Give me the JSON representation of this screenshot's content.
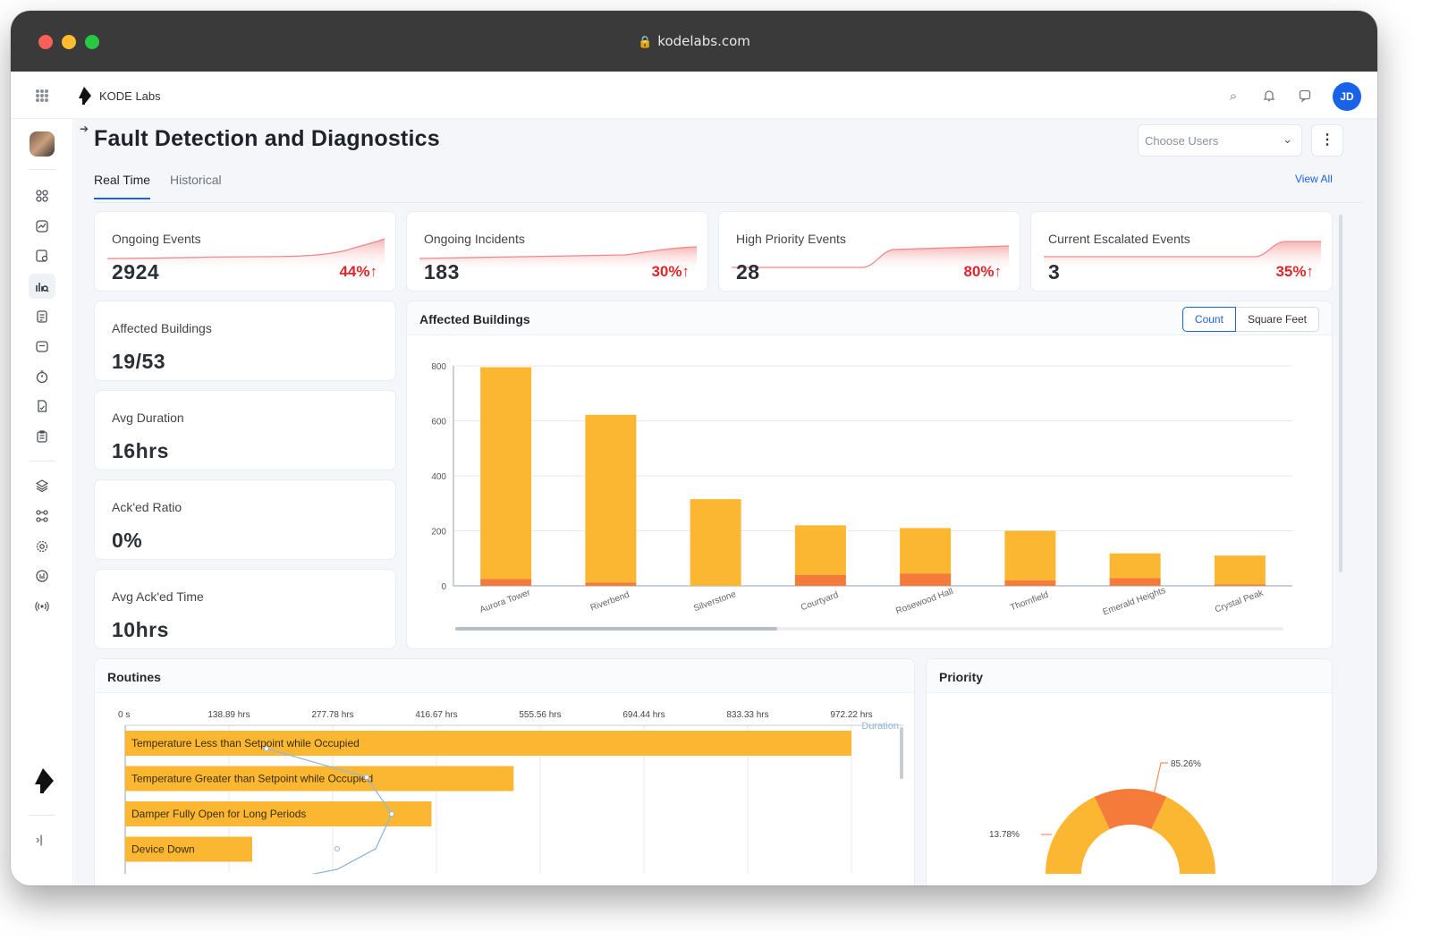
{
  "browser": {
    "url": "kodelabs.com"
  },
  "app": {
    "brand": "KODE Labs",
    "avatar_initials": "JD"
  },
  "page": {
    "title": "Fault Detection and Diagnostics",
    "choose_users_placeholder": "Choose Users",
    "view_all": "View All",
    "tabs": [
      {
        "label": "Real Time",
        "active": true
      },
      {
        "label": "Historical",
        "active": false
      }
    ]
  },
  "kpis": [
    {
      "label": "Ongoing Events",
      "value": "2924",
      "change": "44%↑"
    },
    {
      "label": "Ongoing Incidents",
      "value": "183",
      "change": "30%↑"
    },
    {
      "label": "High Priority Events",
      "value": "28",
      "change": "80%↑"
    },
    {
      "label": "Current Escalated Events",
      "value": "3",
      "change": "35%↑"
    }
  ],
  "stats": [
    {
      "label": "Affected Buildings",
      "value": "19/53"
    },
    {
      "label": "Avg Duration",
      "value": "16hrs"
    },
    {
      "label": "Ack'ed Ratio",
      "value": "0%"
    },
    {
      "label": "Avg Ack'ed Time",
      "value": "10hrs"
    }
  ],
  "affected_buildings": {
    "title": "Affected Buildings",
    "toggle": {
      "count": "Count",
      "square_feet": "Square Feet",
      "selected": "Count"
    }
  },
  "routines": {
    "title": "Routines"
  },
  "priority": {
    "title": "Priority"
  },
  "colors": {
    "accent": "#1a62e8",
    "bar": "#fbb731",
    "bar_low": "#f47b3a",
    "negative": "#e0262b"
  },
  "chart_data": [
    {
      "type": "bar",
      "stacked": true,
      "categories": [
        "Aurora Tower",
        "Riverbend",
        "Silverstone",
        "Courtyard",
        "Rosewood Hall",
        "Thornfield",
        "Emerald Heights",
        "Crystal Peak"
      ],
      "series": [
        {
          "values": [
            770,
            610,
            315,
            180,
            165,
            180,
            90,
            105
          ]
        },
        {
          "values": [
            25,
            12,
            0,
            40,
            45,
            20,
            28,
            5
          ]
        }
      ],
      "ylim": [
        0,
        800
      ],
      "yticks": [
        0,
        200,
        400,
        600,
        800
      ]
    },
    {
      "type": "bar",
      "orientation": "horizontal",
      "categories": [
        "Temperature Less than Setpoint while Occupied",
        "Temperature Greater than Setpoint while Occupied",
        "Damper Fully Open for Long Periods",
        "Device Down"
      ],
      "values": [
        972.22,
        520,
        410,
        170
      ],
      "xlim": [
        0,
        972.22
      ],
      "xticks": [
        "0 s",
        "138.89 hrs",
        "277.78 hrs",
        "416.67 hrs",
        "555.56 hrs",
        "694.44 hrs",
        "833.33 hrs",
        "972.22 hrs"
      ],
      "xlabel": "Duration"
    },
    {
      "type": "pie",
      "labels": [
        "85.26%",
        "13.78%"
      ],
      "values": [
        85.26,
        13.78
      ]
    }
  ]
}
